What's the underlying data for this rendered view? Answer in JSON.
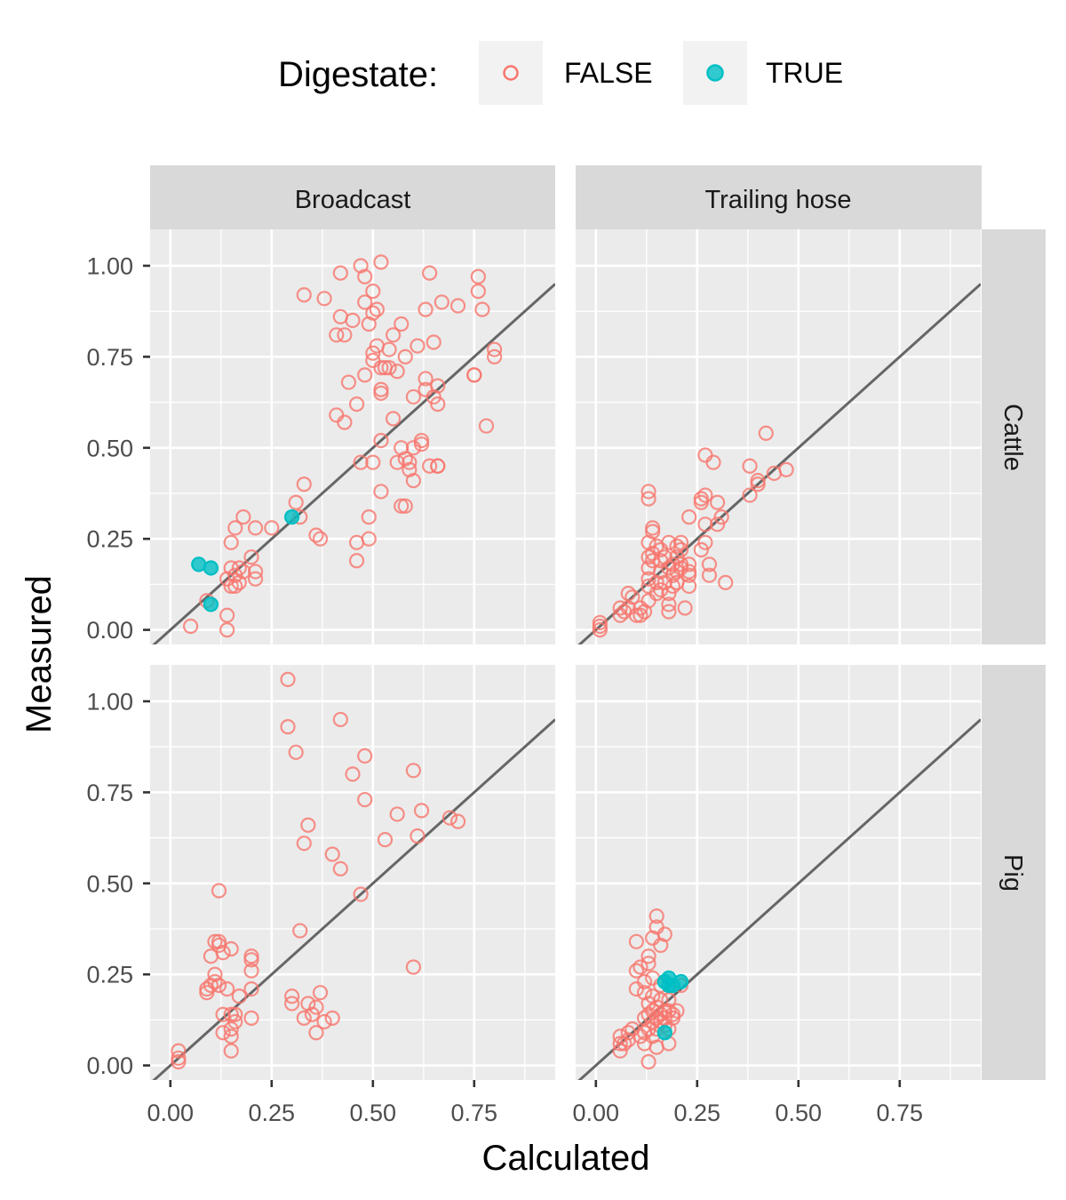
{
  "chart_data": {
    "type": "scatter",
    "xlabel": "Calculated",
    "ylabel": "Measured",
    "xlim": [
      -0.05,
      0.95
    ],
    "ylim": [
      -0.04,
      1.1
    ],
    "x_ticks": [
      "0.00",
      "0.25",
      "0.50",
      "0.75"
    ],
    "y_ticks": [
      "0.00",
      "0.25",
      "0.50",
      "0.75",
      "1.00"
    ],
    "x_tick_values": [
      0,
      0.25,
      0.5,
      0.75
    ],
    "y_tick_values": [
      0,
      0.25,
      0.5,
      0.75,
      1.0
    ],
    "reference_line": "y = x",
    "grid": true,
    "legend": {
      "title": "Digestate:",
      "position": "top",
      "entries": [
        {
          "label": "FALSE",
          "color": "#F8766D",
          "marker": "open-circle"
        },
        {
          "label": "TRUE",
          "color": "#00BFC4",
          "marker": "filled-circle"
        }
      ]
    },
    "facet_cols": [
      "Broadcast",
      "Trailing hose"
    ],
    "facet_rows": [
      "Cattle",
      "Pig"
    ],
    "panels": [
      {
        "col": "Broadcast",
        "row": "Cattle",
        "false_points": [
          [
            0.05,
            0.01
          ],
          [
            0.09,
            0.08
          ],
          [
            0.14,
            0.0
          ],
          [
            0.14,
            0.04
          ],
          [
            0.14,
            0.14
          ],
          [
            0.15,
            0.12
          ],
          [
            0.15,
            0.17
          ],
          [
            0.16,
            0.12
          ],
          [
            0.16,
            0.15
          ],
          [
            0.17,
            0.13
          ],
          [
            0.17,
            0.17
          ],
          [
            0.18,
            0.16
          ],
          [
            0.15,
            0.24
          ],
          [
            0.16,
            0.28
          ],
          [
            0.18,
            0.31
          ],
          [
            0.2,
            0.2
          ],
          [
            0.21,
            0.14
          ],
          [
            0.21,
            0.16
          ],
          [
            0.21,
            0.28
          ],
          [
            0.25,
            0.28
          ],
          [
            0.31,
            0.35
          ],
          [
            0.32,
            0.31
          ],
          [
            0.33,
            0.4
          ],
          [
            0.36,
            0.26
          ],
          [
            0.37,
            0.25
          ],
          [
            0.33,
            0.92
          ],
          [
            0.38,
            0.91
          ],
          [
            0.41,
            0.81
          ],
          [
            0.41,
            0.59
          ],
          [
            0.42,
            0.86
          ],
          [
            0.42,
            0.98
          ],
          [
            0.43,
            0.81
          ],
          [
            0.43,
            0.57
          ],
          [
            0.44,
            0.68
          ],
          [
            0.45,
            0.85
          ],
          [
            0.46,
            0.24
          ],
          [
            0.46,
            0.19
          ],
          [
            0.46,
            0.62
          ],
          [
            0.47,
            0.46
          ],
          [
            0.47,
            1.0
          ],
          [
            0.48,
            0.97
          ],
          [
            0.48,
            0.9
          ],
          [
            0.48,
            0.7
          ],
          [
            0.49,
            0.84
          ],
          [
            0.49,
            0.25
          ],
          [
            0.49,
            0.31
          ],
          [
            0.5,
            0.76
          ],
          [
            0.5,
            0.74
          ],
          [
            0.5,
            0.93
          ],
          [
            0.5,
            0.46
          ],
          [
            0.5,
            0.87
          ],
          [
            0.51,
            0.78
          ],
          [
            0.51,
            0.88
          ],
          [
            0.52,
            0.66
          ],
          [
            0.52,
            0.65
          ],
          [
            0.52,
            0.52
          ],
          [
            0.52,
            0.38
          ],
          [
            0.52,
            0.72
          ],
          [
            0.52,
            1.01
          ],
          [
            0.53,
            0.72
          ],
          [
            0.54,
            0.77
          ],
          [
            0.54,
            0.72
          ],
          [
            0.55,
            0.58
          ],
          [
            0.55,
            0.81
          ],
          [
            0.56,
            0.71
          ],
          [
            0.56,
            0.46
          ],
          [
            0.57,
            0.84
          ],
          [
            0.57,
            0.34
          ],
          [
            0.57,
            0.5
          ],
          [
            0.58,
            0.75
          ],
          [
            0.58,
            0.47
          ],
          [
            0.58,
            0.34
          ],
          [
            0.59,
            0.46
          ],
          [
            0.59,
            0.44
          ],
          [
            0.6,
            0.64
          ],
          [
            0.6,
            0.41
          ],
          [
            0.61,
            0.78
          ],
          [
            0.62,
            0.51
          ],
          [
            0.62,
            0.52
          ],
          [
            0.63,
            0.69
          ],
          [
            0.63,
            0.66
          ],
          [
            0.63,
            0.88
          ],
          [
            0.64,
            0.98
          ],
          [
            0.65,
            0.79
          ],
          [
            0.65,
            0.64
          ],
          [
            0.66,
            0.62
          ],
          [
            0.66,
            0.45
          ],
          [
            0.66,
            0.45
          ],
          [
            0.67,
            0.9
          ],
          [
            0.71,
            0.89
          ],
          [
            0.75,
            0.7
          ],
          [
            0.75,
            0.7
          ],
          [
            0.76,
            0.93
          ],
          [
            0.76,
            0.97
          ],
          [
            0.77,
            0.88
          ],
          [
            0.78,
            0.56
          ],
          [
            0.8,
            0.75
          ],
          [
            0.8,
            0.77
          ],
          [
            0.64,
            0.45
          ],
          [
            0.66,
            0.67
          ],
          [
            0.6,
            0.5
          ]
        ],
        "true_points": [
          [
            0.07,
            0.18
          ],
          [
            0.1,
            0.17
          ],
          [
            0.1,
            0.07
          ],
          [
            0.3,
            0.31
          ]
        ]
      },
      {
        "col": "Trailing hose",
        "row": "Cattle",
        "false_points": [
          [
            0.01,
            0.0
          ],
          [
            0.01,
            0.01
          ],
          [
            0.01,
            0.02
          ],
          [
            0.06,
            0.06
          ],
          [
            0.06,
            0.04
          ],
          [
            0.07,
            0.05
          ],
          [
            0.08,
            0.06
          ],
          [
            0.08,
            0.1
          ],
          [
            0.09,
            0.09
          ],
          [
            0.1,
            0.04
          ],
          [
            0.11,
            0.04
          ],
          [
            0.11,
            0.06
          ],
          [
            0.12,
            0.05
          ],
          [
            0.13,
            0.08
          ],
          [
            0.13,
            0.12
          ],
          [
            0.13,
            0.14
          ],
          [
            0.13,
            0.17
          ],
          [
            0.13,
            0.2
          ],
          [
            0.13,
            0.24
          ],
          [
            0.13,
            0.36
          ],
          [
            0.13,
            0.38
          ],
          [
            0.14,
            0.19
          ],
          [
            0.14,
            0.28
          ],
          [
            0.14,
            0.27
          ],
          [
            0.14,
            0.21
          ],
          [
            0.15,
            0.1
          ],
          [
            0.15,
            0.13
          ],
          [
            0.15,
            0.23
          ],
          [
            0.16,
            0.11
          ],
          [
            0.16,
            0.16
          ],
          [
            0.16,
            0.19
          ],
          [
            0.16,
            0.22
          ],
          [
            0.17,
            0.13
          ],
          [
            0.17,
            0.2
          ],
          [
            0.18,
            0.1
          ],
          [
            0.18,
            0.07
          ],
          [
            0.18,
            0.05
          ],
          [
            0.18,
            0.17
          ],
          [
            0.18,
            0.24
          ],
          [
            0.19,
            0.15
          ],
          [
            0.19,
            0.18
          ],
          [
            0.19,
            0.12
          ],
          [
            0.2,
            0.2
          ],
          [
            0.2,
            0.13
          ],
          [
            0.2,
            0.16
          ],
          [
            0.2,
            0.23
          ],
          [
            0.21,
            0.17
          ],
          [
            0.21,
            0.22
          ],
          [
            0.21,
            0.18
          ],
          [
            0.21,
            0.24
          ],
          [
            0.22,
            0.06
          ],
          [
            0.23,
            0.12
          ],
          [
            0.23,
            0.16
          ],
          [
            0.23,
            0.18
          ],
          [
            0.23,
            0.15
          ],
          [
            0.23,
            0.31
          ],
          [
            0.26,
            0.36
          ],
          [
            0.26,
            0.35
          ],
          [
            0.26,
            0.22
          ],
          [
            0.27,
            0.48
          ],
          [
            0.27,
            0.37
          ],
          [
            0.27,
            0.29
          ],
          [
            0.27,
            0.24
          ],
          [
            0.28,
            0.15
          ],
          [
            0.28,
            0.18
          ],
          [
            0.29,
            0.46
          ],
          [
            0.3,
            0.35
          ],
          [
            0.3,
            0.29
          ],
          [
            0.31,
            0.31
          ],
          [
            0.32,
            0.13
          ],
          [
            0.38,
            0.37
          ],
          [
            0.38,
            0.45
          ],
          [
            0.4,
            0.4
          ],
          [
            0.4,
            0.41
          ],
          [
            0.42,
            0.54
          ],
          [
            0.44,
            0.43
          ],
          [
            0.47,
            0.44
          ]
        ],
        "true_points": []
      },
      {
        "col": "Broadcast",
        "row": "Pig",
        "false_points": [
          [
            0.02,
            0.01
          ],
          [
            0.02,
            0.04
          ],
          [
            0.02,
            0.02
          ],
          [
            0.09,
            0.2
          ],
          [
            0.09,
            0.21
          ],
          [
            0.1,
            0.3
          ],
          [
            0.1,
            0.22
          ],
          [
            0.11,
            0.25
          ],
          [
            0.11,
            0.23
          ],
          [
            0.11,
            0.34
          ],
          [
            0.12,
            0.33
          ],
          [
            0.12,
            0.48
          ],
          [
            0.12,
            0.34
          ],
          [
            0.12,
            0.22
          ],
          [
            0.13,
            0.14
          ],
          [
            0.13,
            0.09
          ],
          [
            0.13,
            0.31
          ],
          [
            0.14,
            0.21
          ],
          [
            0.15,
            0.08
          ],
          [
            0.15,
            0.04
          ],
          [
            0.15,
            0.1
          ],
          [
            0.15,
            0.14
          ],
          [
            0.15,
            0.32
          ],
          [
            0.16,
            0.12
          ],
          [
            0.16,
            0.14
          ],
          [
            0.17,
            0.19
          ],
          [
            0.2,
            0.13
          ],
          [
            0.2,
            0.21
          ],
          [
            0.2,
            0.26
          ],
          [
            0.2,
            0.29
          ],
          [
            0.2,
            0.3
          ],
          [
            0.29,
            1.06
          ],
          [
            0.29,
            0.93
          ],
          [
            0.3,
            0.19
          ],
          [
            0.3,
            0.17
          ],
          [
            0.31,
            0.86
          ],
          [
            0.32,
            0.37
          ],
          [
            0.33,
            0.61
          ],
          [
            0.33,
            0.13
          ],
          [
            0.34,
            0.66
          ],
          [
            0.34,
            0.17
          ],
          [
            0.35,
            0.14
          ],
          [
            0.36,
            0.16
          ],
          [
            0.36,
            0.09
          ],
          [
            0.37,
            0.2
          ],
          [
            0.38,
            0.12
          ],
          [
            0.4,
            0.58
          ],
          [
            0.4,
            0.13
          ],
          [
            0.42,
            0.54
          ],
          [
            0.42,
            0.95
          ],
          [
            0.45,
            0.8
          ],
          [
            0.47,
            0.47
          ],
          [
            0.48,
            0.85
          ],
          [
            0.48,
            0.73
          ],
          [
            0.53,
            0.62
          ],
          [
            0.56,
            0.69
          ],
          [
            0.6,
            0.81
          ],
          [
            0.6,
            0.27
          ],
          [
            0.61,
            0.63
          ],
          [
            0.62,
            0.7
          ],
          [
            0.69,
            0.68
          ],
          [
            0.71,
            0.67
          ]
        ],
        "true_points": []
      },
      {
        "col": "Trailing hose",
        "row": "Pig",
        "false_points": [
          [
            0.06,
            0.04
          ],
          [
            0.06,
            0.06
          ],
          [
            0.06,
            0.08
          ],
          [
            0.07,
            0.06
          ],
          [
            0.08,
            0.07
          ],
          [
            0.08,
            0.09
          ],
          [
            0.09,
            0.1
          ],
          [
            0.1,
            0.26
          ],
          [
            0.1,
            0.34
          ],
          [
            0.1,
            0.21
          ],
          [
            0.11,
            0.27
          ],
          [
            0.11,
            0.08
          ],
          [
            0.12,
            0.06
          ],
          [
            0.12,
            0.09
          ],
          [
            0.12,
            0.13
          ],
          [
            0.12,
            0.2
          ],
          [
            0.12,
            0.23
          ],
          [
            0.13,
            0.01
          ],
          [
            0.13,
            0.1
          ],
          [
            0.13,
            0.14
          ],
          [
            0.13,
            0.17
          ],
          [
            0.13,
            0.28
          ],
          [
            0.13,
            0.3
          ],
          [
            0.14,
            0.08
          ],
          [
            0.14,
            0.12
          ],
          [
            0.14,
            0.15
          ],
          [
            0.14,
            0.19
          ],
          [
            0.14,
            0.24
          ],
          [
            0.14,
            0.35
          ],
          [
            0.15,
            0.38
          ],
          [
            0.15,
            0.41
          ],
          [
            0.15,
            0.05
          ],
          [
            0.15,
            0.1
          ],
          [
            0.15,
            0.13
          ],
          [
            0.15,
            0.16
          ],
          [
            0.16,
            0.12
          ],
          [
            0.16,
            0.14
          ],
          [
            0.16,
            0.18
          ],
          [
            0.16,
            0.22
          ],
          [
            0.16,
            0.33
          ],
          [
            0.17,
            0.11
          ],
          [
            0.17,
            0.13
          ],
          [
            0.17,
            0.15
          ],
          [
            0.17,
            0.36
          ],
          [
            0.18,
            0.06
          ],
          [
            0.18,
            0.1
          ],
          [
            0.18,
            0.15
          ],
          [
            0.18,
            0.18
          ],
          [
            0.19,
            0.14
          ],
          [
            0.19,
            0.13
          ],
          [
            0.2,
            0.15
          ],
          [
            0.21,
            0.22
          ]
        ],
        "true_points": [
          [
            0.17,
            0.09
          ],
          [
            0.17,
            0.23
          ],
          [
            0.18,
            0.24
          ],
          [
            0.18,
            0.22
          ],
          [
            0.19,
            0.22
          ],
          [
            0.21,
            0.23
          ]
        ]
      }
    ]
  }
}
